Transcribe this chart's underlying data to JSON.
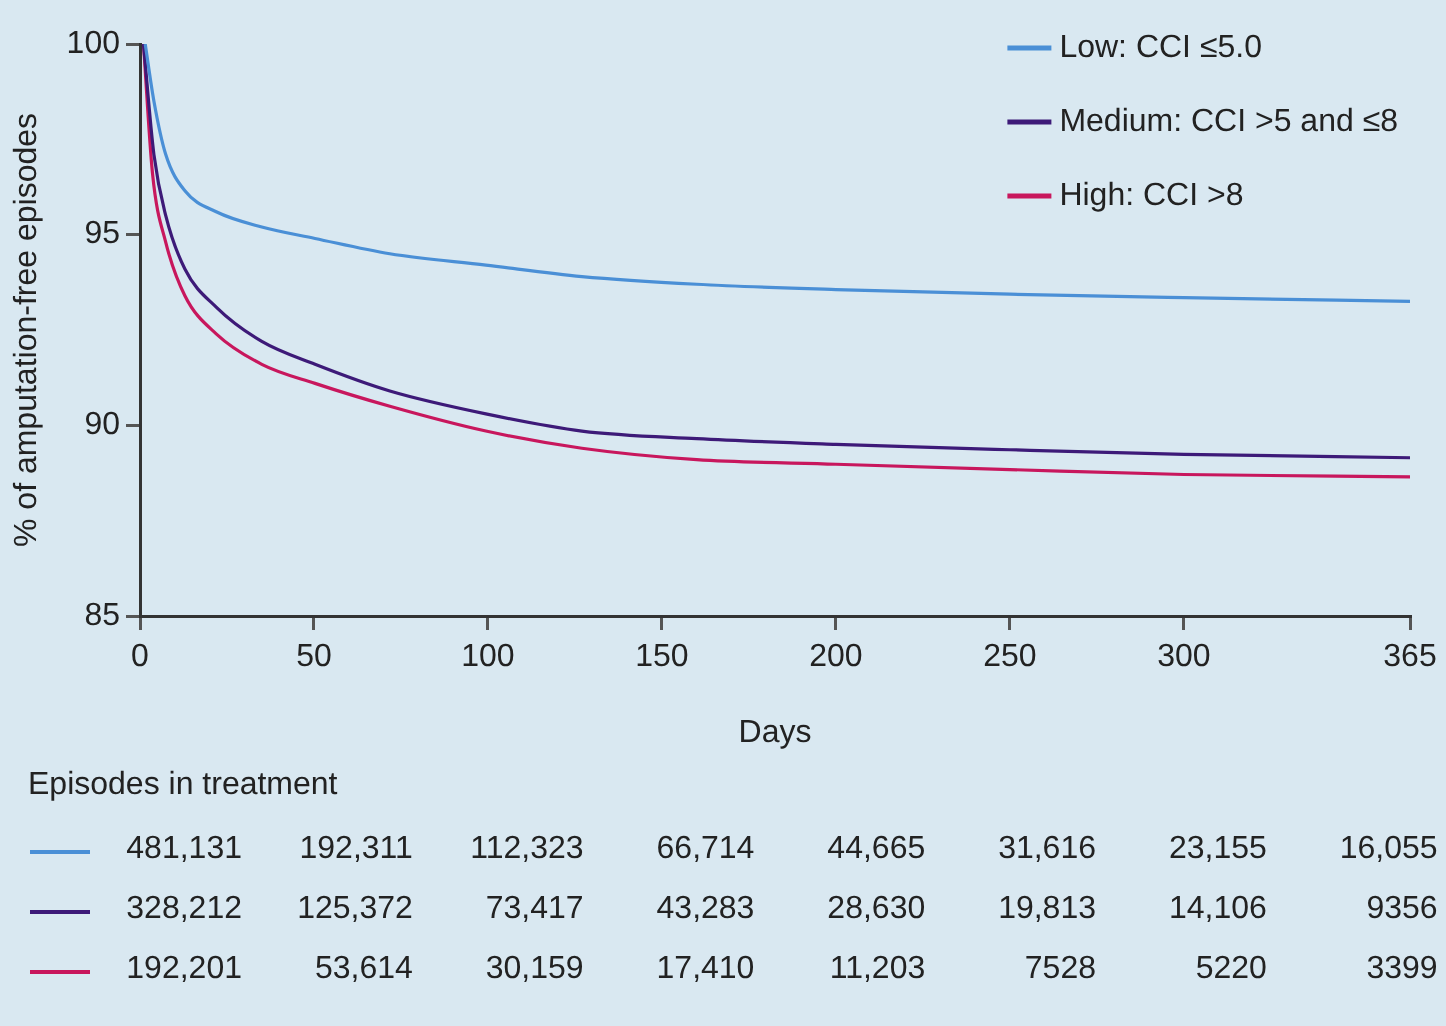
{
  "chart_data": {
    "type": "line",
    "xlabel": "Days",
    "ylabel": "% of amputation-free episodes",
    "xlim": [
      0,
      365
    ],
    "xticks": [
      0,
      50,
      100,
      150,
      200,
      250,
      300,
      365
    ],
    "ylim": [
      85,
      100
    ],
    "yticks": [
      85,
      90,
      95,
      100
    ],
    "grid": false,
    "legend": "top right",
    "marker": "none",
    "line_style": "solid",
    "series": [
      {
        "name": "Low: CCI ≤5.0",
        "color": "#4a8fd6",
        "x": [
          1.5,
          4,
          7.4,
          12.9,
          21.9,
          35,
          50.3,
          71.8,
          99.4,
          127,
          160,
          200,
          250,
          300,
          365
        ],
        "values": [
          100,
          98.5,
          97.1,
          96.15,
          95.6,
          95.2,
          94.9,
          94.5,
          94.2,
          93.9,
          93.7,
          93.56,
          93.44,
          93.35,
          93.25
        ]
      },
      {
        "name": "Medium: CCI >5 and ≤8",
        "color": "#3d1a78",
        "x": [
          1,
          4,
          7.4,
          12.9,
          21.9,
          35,
          50.3,
          71.8,
          99.4,
          127,
          160,
          200,
          250,
          300,
          365
        ],
        "values": [
          100,
          97.1,
          95.5,
          94.1,
          93.1,
          92.2,
          91.6,
          90.9,
          90.3,
          89.85,
          89.65,
          89.5,
          89.36,
          89.24,
          89.15
        ]
      },
      {
        "name": "High: CCI >8",
        "color": "#c8175d",
        "x": [
          1,
          3.6,
          7.4,
          12.9,
          21.9,
          35,
          50.3,
          71.8,
          99.4,
          127,
          160,
          200,
          250,
          300,
          365
        ],
        "values": [
          100,
          96.6,
          94.8,
          93.4,
          92.4,
          91.6,
          91.1,
          90.5,
          89.85,
          89.4,
          89.1,
          88.98,
          88.84,
          88.71,
          88.65
        ]
      }
    ],
    "annotations": [
      "Episodes in treatment",
      "481,131",
      "192,311",
      "112,323",
      "66,714",
      "44,665",
      "31,616",
      "23,155",
      "16,055",
      "328,212",
      "125,372",
      "73,417",
      "43,283",
      "28,630",
      "19,813",
      "14,106",
      "9356",
      "192,201",
      "53,614",
      "30,159",
      "17,410",
      "11,203",
      "7528",
      "5220",
      "3399"
    ]
  }
}
